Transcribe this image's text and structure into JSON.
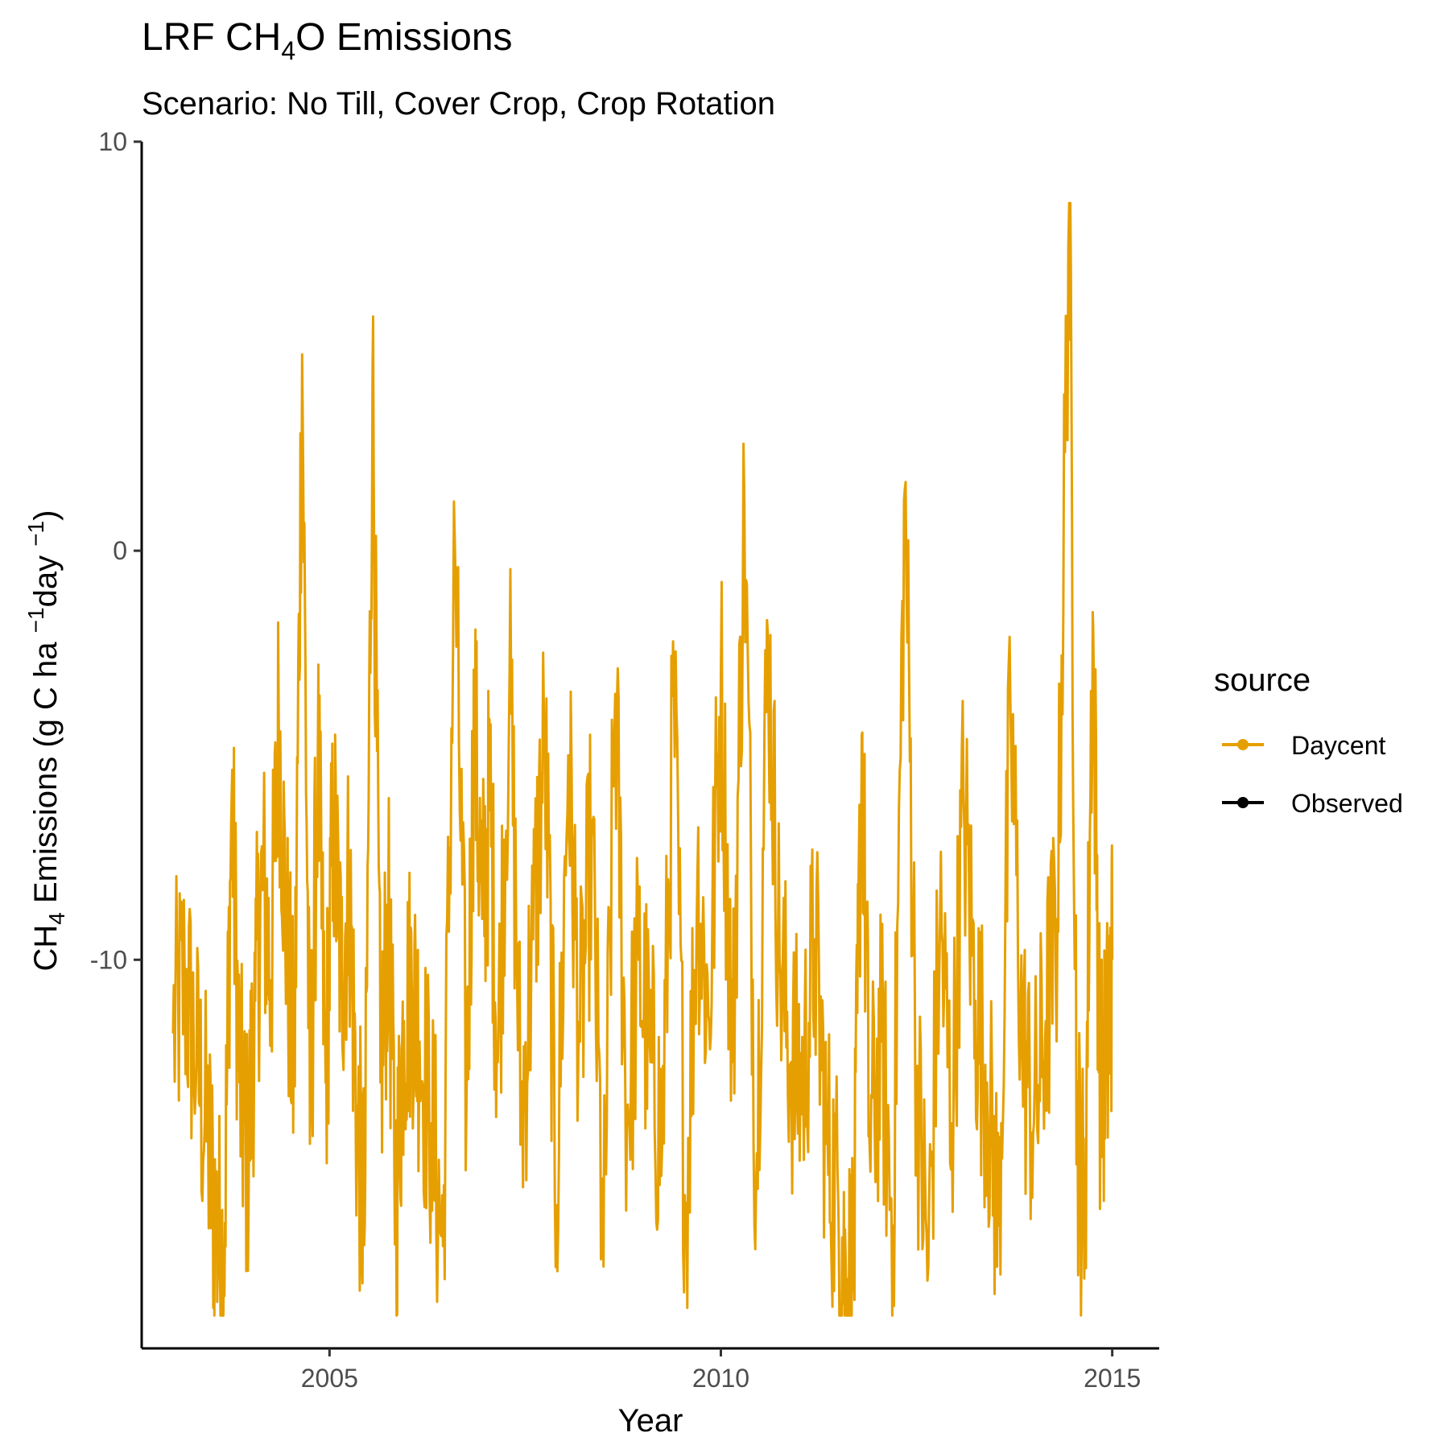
{
  "chart_data": {
    "type": "line",
    "title_main": "LRF CH",
    "title_sub_script": "4",
    "title_tail": "O Emissions",
    "subtitle": "Scenario: No Till, Cover Crop, Crop Rotation",
    "xlabel": "Year",
    "ylabel_parts": {
      "a": "CH",
      "a_sub": "4",
      "b": " Emissions (g C ha ",
      "b_sup": "−1",
      "c": "day ",
      "c_sup": "−1",
      "d": ")"
    },
    "xlim": [
      2002.6,
      2015.6
    ],
    "ylim": [
      -19.5,
      10.0
    ],
    "x_ticks": [
      2005,
      2010,
      2015
    ],
    "x_tick_labels": [
      "2005",
      "2010",
      "2015"
    ],
    "y_ticks": [
      -10,
      0,
      10
    ],
    "y_tick_labels": [
      "-10",
      "0",
      "10"
    ],
    "grid": false,
    "legend_position": "right",
    "legend_title": "source",
    "legend": [
      {
        "name": "Daycent",
        "color": "#E69F00"
      },
      {
        "name": "Observed",
        "color": "#000000"
      }
    ],
    "series": [
      {
        "name": "Daycent",
        "color": "#E69F00",
        "values_note_free": true,
        "x": [
          2003.0,
          2003.15,
          2003.3,
          2003.45,
          2003.55,
          2003.65,
          2003.75,
          2003.85,
          2003.95,
          2004.05,
          2004.15,
          2004.25,
          2004.35,
          2004.45,
          2004.55,
          2004.65,
          2004.75,
          2004.85,
          2004.95,
          2005.05,
          2005.15,
          2005.25,
          2005.35,
          2005.45,
          2005.55,
          2005.65,
          2005.75,
          2005.85,
          2005.95,
          2006.05,
          2006.15,
          2006.3,
          2006.45,
          2006.6,
          2006.75,
          2006.85,
          2006.95,
          2007.05,
          2007.15,
          2007.3,
          2007.45,
          2007.6,
          2007.75,
          2007.9,
          2008.05,
          2008.2,
          2008.35,
          2008.5,
          2008.65,
          2008.8,
          2008.95,
          2009.1,
          2009.25,
          2009.4,
          2009.55,
          2009.7,
          2009.85,
          2010.0,
          2010.15,
          2010.3,
          2010.45,
          2010.6,
          2010.75,
          2010.9,
          2011.05,
          2011.2,
          2011.35,
          2011.5,
          2011.6,
          2011.7,
          2011.8,
          2011.9,
          2012.05,
          2012.2,
          2012.35,
          2012.5,
          2012.65,
          2012.8,
          2012.95,
          2013.1,
          2013.25,
          2013.4,
          2013.55,
          2013.7,
          2013.85,
          2014.0,
          2014.15,
          2014.3,
          2014.45,
          2014.55,
          2014.65,
          2014.75,
          2014.85,
          2014.95,
          2015.0
        ],
        "values": [
          -11.8,
          -10.5,
          -12.5,
          -14.5,
          -16.5,
          -17.5,
          -6.0,
          -13.0,
          -15.0,
          -11.0,
          -8.0,
          -10.5,
          -4.0,
          -9.5,
          -13.0,
          4.8,
          -14.5,
          -5.0,
          -13.0,
          -6.5,
          -10.5,
          -8.0,
          -14.0,
          -16.5,
          4.5,
          -13.0,
          -9.0,
          -16.0,
          -11.5,
          -10.5,
          -12.0,
          -14.0,
          -17.0,
          0.3,
          -13.5,
          -4.0,
          -9.0,
          -6.0,
          -12.5,
          -3.0,
          -14.0,
          -9.5,
          -4.5,
          -16.0,
          -5.0,
          -12.0,
          -7.0,
          -17.5,
          -3.5,
          -14.0,
          -10.0,
          -12.5,
          -14.5,
          -3.5,
          -16.5,
          -8.0,
          -11.5,
          -3.0,
          -12.5,
          1.2,
          -15.5,
          -2.0,
          -10.0,
          -12.5,
          -13.0,
          -9.5,
          -14.5,
          -16.0,
          -18.0,
          -17.5,
          -4.5,
          -14.5,
          -12.0,
          -16.5,
          1.5,
          -13.0,
          -17.5,
          -9.0,
          -14.0,
          -6.0,
          -11.0,
          -13.0,
          -16.5,
          -4.0,
          -12.0,
          -14.0,
          -11.5,
          -9.0,
          8.5,
          -14.0,
          -16.5,
          -1.5,
          -13.5,
          -12.0,
          -10.0
        ]
      },
      {
        "name": "Observed",
        "color": "#000000",
        "x": [],
        "values": []
      }
    ]
  }
}
